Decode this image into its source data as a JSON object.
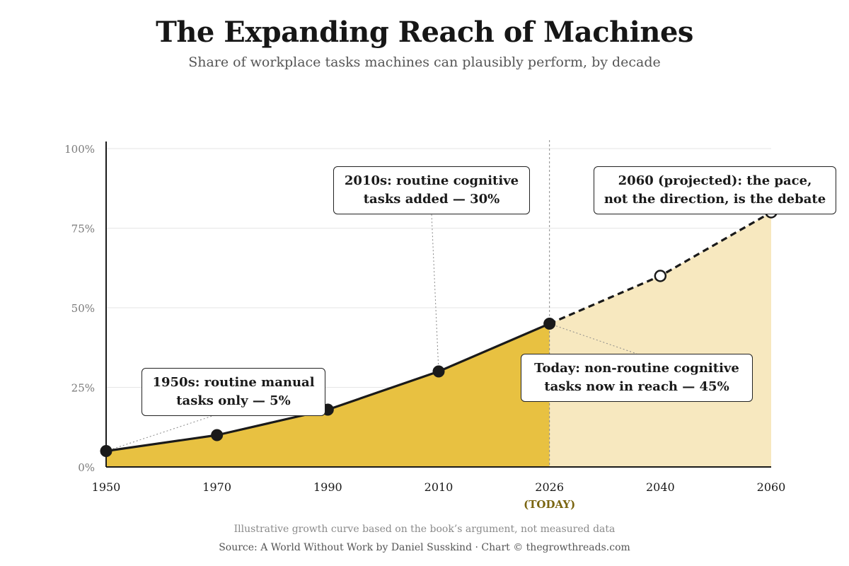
{
  "title": "The Expanding Reach of Machines",
  "subtitle": "Share of workplace tasks machines can plausibly perform, by decade",
  "note": "Illustrative growth curve based on the book’s argument, not measured data",
  "source": "Source: A World Without Work by Daniel Susskind · Chart © thegrowthreads.com",
  "colors": {
    "actual_fill": "#e8c141",
    "projected_fill": "#f7e8bf",
    "line": "#1a1a1a",
    "today_label": "#7a6510",
    "grid": "#e6e6e6",
    "tick_text": "#7a7a7a"
  },
  "chart_data": {
    "type": "area",
    "title": "The Expanding Reach of Machines",
    "subtitle": "Share of workplace tasks machines can plausibly perform, by decade",
    "x": [
      1950,
      1970,
      1990,
      2010,
      2026,
      2040,
      2060
    ],
    "x_tick_labels": [
      "1950",
      "1970",
      "1990",
      "2010",
      "2026",
      "2040",
      "2060"
    ],
    "today_marker": {
      "x": 2026,
      "label": "(TODAY)"
    },
    "ylim": [
      0,
      100
    ],
    "y_ticks": [
      0,
      25,
      50,
      75,
      100
    ],
    "y_tick_labels": [
      "0%",
      "25%",
      "50%",
      "75%",
      "100%"
    ],
    "grid": true,
    "series": [
      {
        "style": "actual",
        "x": [
          1950,
          1970,
          1990,
          2010,
          2026
        ],
        "values": [
          5,
          10,
          18,
          30,
          45
        ]
      },
      {
        "style": "projected",
        "x": [
          2026,
          2040,
          2060
        ],
        "values": [
          45,
          60,
          80
        ]
      }
    ],
    "annotations": [
      {
        "id": "a1950",
        "lines": [
          "1950s: routine manual",
          "tasks only — 5%"
        ],
        "x": 1950,
        "y": 5
      },
      {
        "id": "a2010",
        "lines": [
          "2010s: routine cognitive",
          "tasks added — 30%"
        ],
        "x": 2010,
        "y": 30
      },
      {
        "id": "a2026",
        "lines": [
          "Today: non-routine cognitive",
          "tasks now in reach — 45%"
        ],
        "x": 2026,
        "y": 45
      },
      {
        "id": "a2060",
        "lines": [
          "2060 (projected): the pace,",
          "not the direction, is the debate"
        ],
        "x": 2060,
        "y": 80
      }
    ]
  }
}
